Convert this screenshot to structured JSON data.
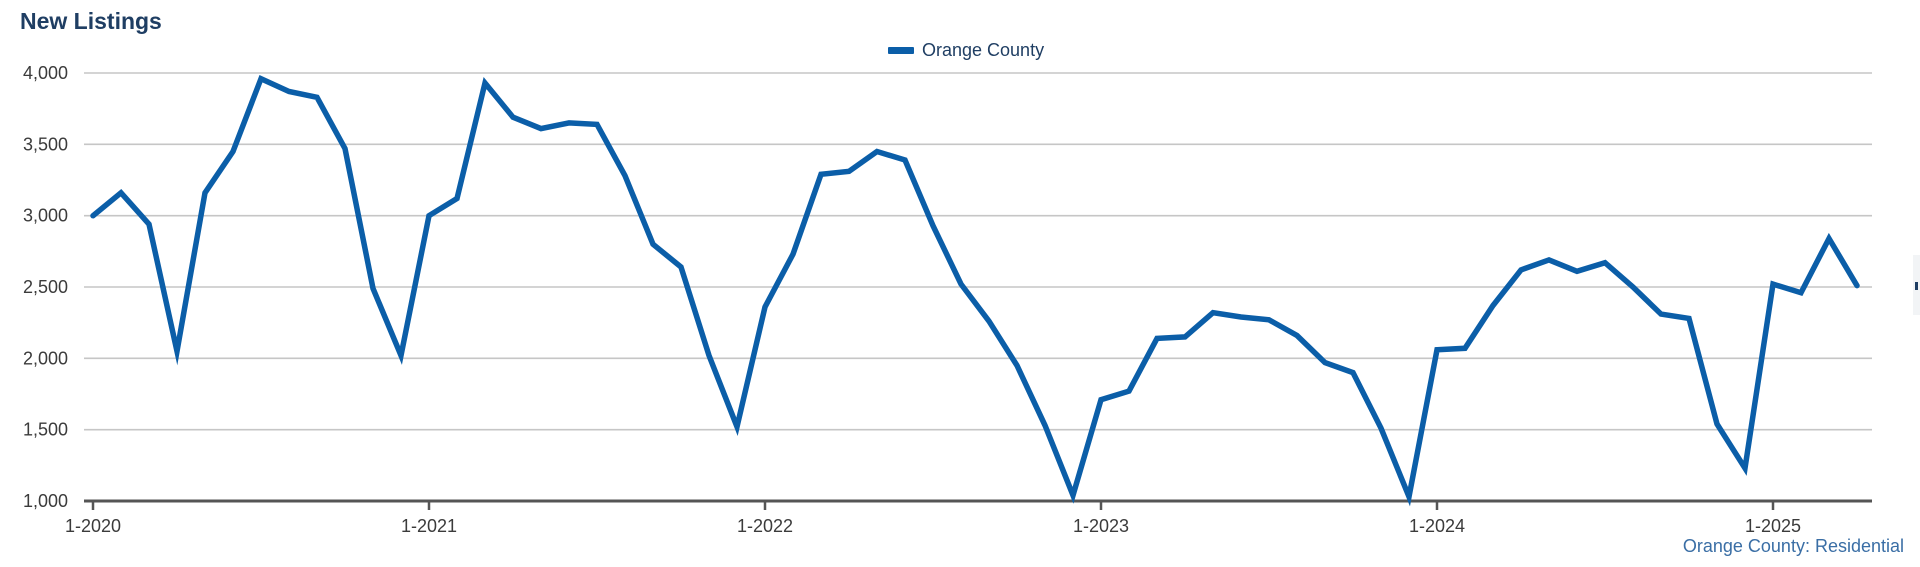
{
  "page": {
    "title": "New Listings",
    "footer": "Orange County: Residential"
  },
  "colors": {
    "series": "#0b5ea8",
    "title": "#1f3e63",
    "grid": "#c6c6c6",
    "axis": "#555555",
    "footer": "#3a6ea5"
  },
  "chart_data": {
    "type": "line",
    "title": "New Listings",
    "xlabel": "",
    "ylabel": "",
    "ylim": [
      1000,
      4000
    ],
    "yticks": [
      1000,
      1500,
      2000,
      2500,
      3000,
      3500,
      4000
    ],
    "ytick_labels": [
      "1,000",
      "1,500",
      "2,000",
      "2,500",
      "3,000",
      "3,500",
      "4,000"
    ],
    "xtick_labels": [
      "1-2020",
      "1-2021",
      "1-2022",
      "1-2023",
      "1-2024",
      "1-2025"
    ],
    "xlim": [
      "1-2020",
      "4-2025"
    ],
    "legend_position": "top-center",
    "grid": true,
    "series": [
      {
        "name": "Orange County",
        "x": [
          "1-2020",
          "2-2020",
          "3-2020",
          "4-2020",
          "5-2020",
          "6-2020",
          "7-2020",
          "8-2020",
          "9-2020",
          "10-2020",
          "11-2020",
          "12-2020",
          "1-2021",
          "2-2021",
          "3-2021",
          "4-2021",
          "5-2021",
          "6-2021",
          "7-2021",
          "8-2021",
          "9-2021",
          "10-2021",
          "11-2021",
          "12-2021",
          "1-2022",
          "2-2022",
          "3-2022",
          "4-2022",
          "5-2022",
          "6-2022",
          "7-2022",
          "8-2022",
          "9-2022",
          "10-2022",
          "11-2022",
          "12-2022",
          "1-2023",
          "2-2023",
          "3-2023",
          "4-2023",
          "5-2023",
          "6-2023",
          "7-2023",
          "8-2023",
          "9-2023",
          "10-2023",
          "11-2023",
          "12-2023",
          "1-2024",
          "2-2024",
          "3-2024",
          "4-2024",
          "5-2024",
          "6-2024",
          "7-2024",
          "8-2024",
          "9-2024",
          "10-2024",
          "11-2024",
          "12-2024",
          "1-2025",
          "2-2025",
          "3-2025",
          "4-2025"
        ],
        "values": [
          3000,
          3160,
          2940,
          2050,
          3160,
          3450,
          3960,
          3870,
          3830,
          3470,
          2490,
          2020,
          3000,
          3120,
          3930,
          3690,
          3610,
          3650,
          3640,
          3280,
          2800,
          2640,
          2020,
          1520,
          2360,
          2730,
          3290,
          3310,
          3450,
          3390,
          2930,
          2520,
          2260,
          1950,
          1530,
          1040,
          1710,
          1770,
          2140,
          2150,
          2320,
          2290,
          2270,
          2160,
          1970,
          1900,
          1510,
          1030,
          2060,
          2070,
          2370,
          2620,
          2690,
          2610,
          2670,
          2500,
          2310,
          2280,
          1540,
          1230,
          2520,
          2460,
          2840,
          2510
        ]
      }
    ]
  }
}
